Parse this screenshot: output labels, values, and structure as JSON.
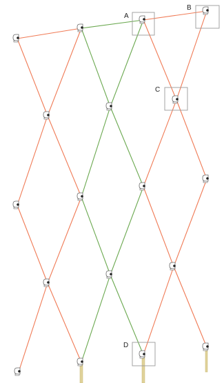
{
  "colors": {
    "orange": "#f07a55",
    "green": "#6aa84f",
    "pole": "#e0d29a",
    "box": "#9a9a9a",
    "node": "#666666"
  },
  "labels": {
    "a": "A",
    "b": "B",
    "c": "C",
    "d": "D"
  },
  "icon": "clamp-node-icon"
}
